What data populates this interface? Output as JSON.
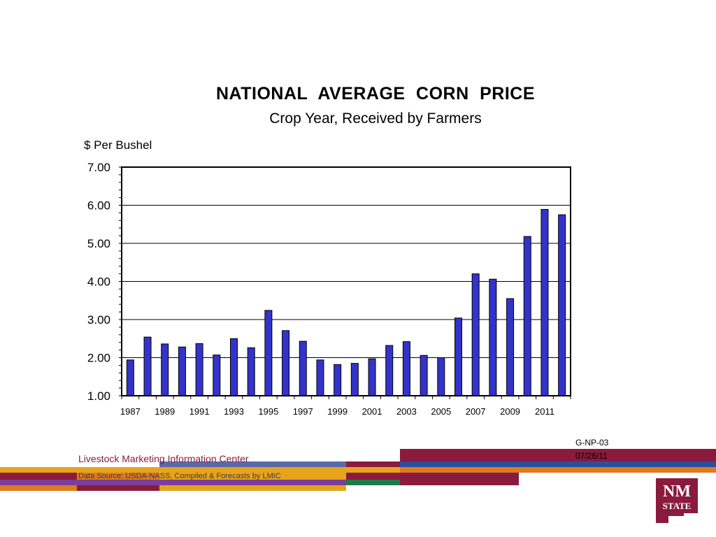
{
  "chart_data": {
    "type": "bar",
    "title": "NATIONAL  AVERAGE  CORN  PRICE",
    "subtitle": "Crop Year, Received by Farmers",
    "ylabel": "$ Per Bushel",
    "xlabel": "",
    "ylim": [
      1.0,
      7.0
    ],
    "yticks": [
      "1.00",
      "2.00",
      "3.00",
      "4.00",
      "5.00",
      "6.00",
      "7.00"
    ],
    "categories": [
      "1987",
      "1988",
      "1989",
      "1990",
      "1991",
      "1992",
      "1993",
      "1994",
      "1995",
      "1996",
      "1997",
      "1998",
      "1999",
      "2000",
      "2001",
      "2002",
      "2003",
      "2004",
      "2005",
      "2006",
      "2007",
      "2008",
      "2009",
      "2010",
      "2011",
      "2012"
    ],
    "xtick_labels": [
      "1987",
      "1989",
      "1991",
      "1993",
      "1995",
      "1997",
      "1999",
      "2001",
      "2003",
      "2005",
      "2007",
      "2009",
      "2011"
    ],
    "values": [
      1.94,
      2.54,
      2.36,
      2.28,
      2.37,
      2.07,
      2.5,
      2.26,
      3.24,
      2.71,
      2.43,
      1.94,
      1.82,
      1.85,
      1.97,
      2.32,
      2.42,
      2.06,
      2.0,
      3.04,
      4.2,
      4.06,
      3.55,
      5.18,
      5.89,
      5.75
    ],
    "grid": true,
    "bar_color": "#3333cc"
  },
  "footer": {
    "org": "Livestock Marketing Information Center",
    "source": "Data Source:  USDA-NASS, Compiled & Forecasts by LMIC",
    "code": "G-NP-03",
    "date": "07/26/11",
    "logo_line1": "NM",
    "logo_line2": "STATE"
  },
  "colors": {
    "maroon": "#8b1a3f",
    "gold": "#e8a31d",
    "purple": "#7b3f98",
    "blue": "#2a4fa0",
    "orange": "#e07a1f",
    "green": "#1e7a4a",
    "slate": "#5a6aa8"
  }
}
